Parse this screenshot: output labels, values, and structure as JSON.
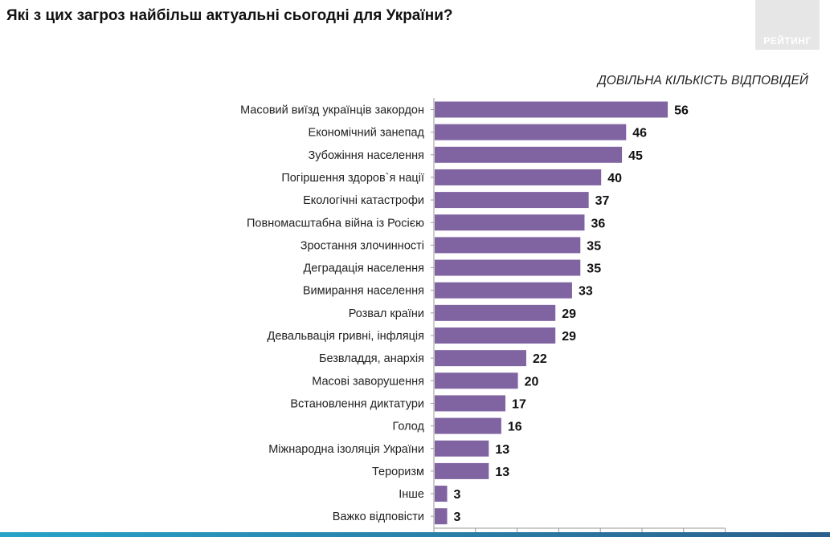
{
  "header": {
    "title": "Які з цих загроз найбільш актуальні сьогодні для України?",
    "logo_text": "РЕЙТИНГ"
  },
  "chart_data": {
    "type": "bar",
    "orientation": "horizontal",
    "note": "ДОВІЛЬНА КІЛЬКІСТЬ ВІДПОВІДЕЙ",
    "categories": [
      "Масовий виїзд українців закордон",
      "Економічний занепад",
      "Зубожіння населення",
      "Погіршення здоров`я нації",
      "Екологічні катастрофи",
      "Повномасштабна війна із Росією",
      "Зростання злочинності",
      "Деградація населення",
      "Вимирання населення",
      "Розвал країни",
      "Девальвація гривні, інфляція",
      "Безвладдя, анархія",
      "Масові заворушення",
      "Встановлення диктатури",
      "Голод",
      "Міжнародна ізоляція України",
      "Тероризм",
      "Інше",
      "Важко відповісти"
    ],
    "values": [
      56,
      46,
      45,
      40,
      37,
      36,
      35,
      35,
      33,
      29,
      29,
      22,
      20,
      17,
      16,
      13,
      13,
      3,
      3
    ],
    "xlim": [
      0,
      70
    ],
    "grid": false,
    "bar_color": "#8064a2"
  }
}
